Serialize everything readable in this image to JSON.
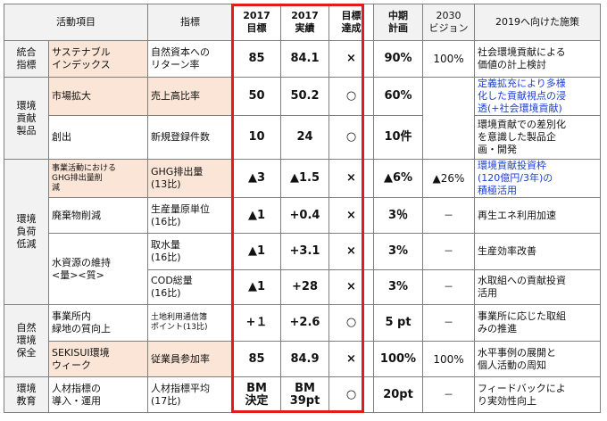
{
  "header": {
    "activity": "活動項目",
    "indicator": "指標",
    "target_year": "2017",
    "target_label": "目標",
    "result_year": "2017",
    "result_label": "実績",
    "achieve_l1": "目標",
    "achieve_l2": "達成",
    "midterm_l1": "中期",
    "midterm_l2": "計画",
    "vision_l1": "2030",
    "vision_l2": "ビジョン",
    "measures": "2019へ向けた施策"
  },
  "categories": {
    "tougou_l1": "統合",
    "tougou_l2": "指標",
    "kankyou_l1": "環境",
    "kankyou_l2": "貢献",
    "kankyou_l3": "製品",
    "fuka_l1": "環境",
    "fuka_l2": "負荷",
    "fuka_l3": "低減",
    "shizen_l1": "自然",
    "shizen_l2": "環境",
    "shizen_l3": "保全",
    "kyouiku_l1": "環境",
    "kyouiku_l2": "教育"
  },
  "rows": {
    "r1": {
      "act_l1": "サステナブル",
      "act_l2": "インデックス",
      "ind_l1": "自然資本への",
      "ind_l2": "リターン率",
      "target": "85",
      "result": "84.1",
      "achieved": "×",
      "midterm": "90%",
      "vision": "100%",
      "measure_l1": "社会環境貢献による",
      "measure_l2": "価値の計上検討"
    },
    "r2": {
      "act": "市場拡大",
      "ind": "売上高比率",
      "target": "50",
      "result": "50.2",
      "achieved": "○",
      "midterm": "60%",
      "measure_l1": "定義拡充により多様",
      "measure_l2": "化した貢献視点の浸",
      "measure_l3": "透(+社会環境貢献)"
    },
    "r3": {
      "act": "創出",
      "ind": "新規登録件数",
      "target": "10",
      "result": "24",
      "achieved": "○",
      "midterm": "10件",
      "vision": "－",
      "measure_l1": "環境貢献での差別化",
      "measure_l2": "を意識した製品企",
      "measure_l3": "画・開発"
    },
    "r4": {
      "act_l1": "事業活動における",
      "act_l2": "GHG排出量削",
      "act_l3": "減",
      "ind_l1": "GHG排出量",
      "ind_l2": "(13比)",
      "target": "▲3",
      "result": "▲1.5",
      "achieved": "×",
      "midterm": "▲6%",
      "vision": "▲26%",
      "measure_l1": "環境貢献投資枠",
      "measure_l2": "(120億円/3年)の",
      "measure_l3": "積極活用"
    },
    "r5": {
      "act": "廃棄物削減",
      "ind_l1": "生産量原単位",
      "ind_l2": "(16比)",
      "target": "▲1",
      "result": "+0.4",
      "achieved": "×",
      "midterm": "3％",
      "vision": "－",
      "measure": "再生エネ利用加速"
    },
    "r6": {
      "act_l1": "水資源の維持",
      "act_l2": "<量><質>",
      "ind_l1": "取水量",
      "ind_l2": "(16比)",
      "target": "▲1",
      "result": "+3.1",
      "achieved": "×",
      "midterm": "3%",
      "vision": "－",
      "measure": "生産効率改善"
    },
    "r7": {
      "ind_l1": "COD総量",
      "ind_l2": "(16比)",
      "target": "▲1",
      "result": "+28",
      "achieved": "×",
      "midterm": "3%",
      "vision": "－",
      "measure_l1": "水取組への貢献投資",
      "measure_l2": "活用"
    },
    "r8": {
      "act_l1": "事業所内",
      "act_l2": "緑地の質向上",
      "ind_l1": "土地利用通信簿",
      "ind_l2": "ポイント(13比)",
      "target": "+１",
      "result": "+2.6",
      "achieved": "○",
      "midterm": "5 pt",
      "vision": "－",
      "measure_l1": "事業所に応じた取組",
      "measure_l2": "みの推進"
    },
    "r9": {
      "act_l1": "SEKISUI環境",
      "act_l2": "ウィーク",
      "ind": "従業員参加率",
      "target": "85",
      "result": "84.9",
      "achieved": "×",
      "midterm": "100%",
      "vision": "100%",
      "measure_l1": "水平事例の展開と",
      "measure_l2": "個人活動の周知"
    },
    "r10": {
      "act_l1": "人材指標の",
      "act_l2": "導入・運用",
      "ind_l1": "人材指標平均",
      "ind_l2": "(17比)",
      "target_l1": "BM",
      "target_l2": "決定",
      "result_l1": "BM",
      "result_l2": "39pt",
      "achieved": "○",
      "midterm": "20pt",
      "vision": "－",
      "measure_l1": "フィードバックによ",
      "measure_l2": "り実効性向上"
    }
  },
  "colors": {
    "highlight_border": "#e01d1d",
    "header_fill": "#f2f2f2",
    "activity_fill": "#fbe5d6",
    "blue_text": "#1a3fd0"
  }
}
